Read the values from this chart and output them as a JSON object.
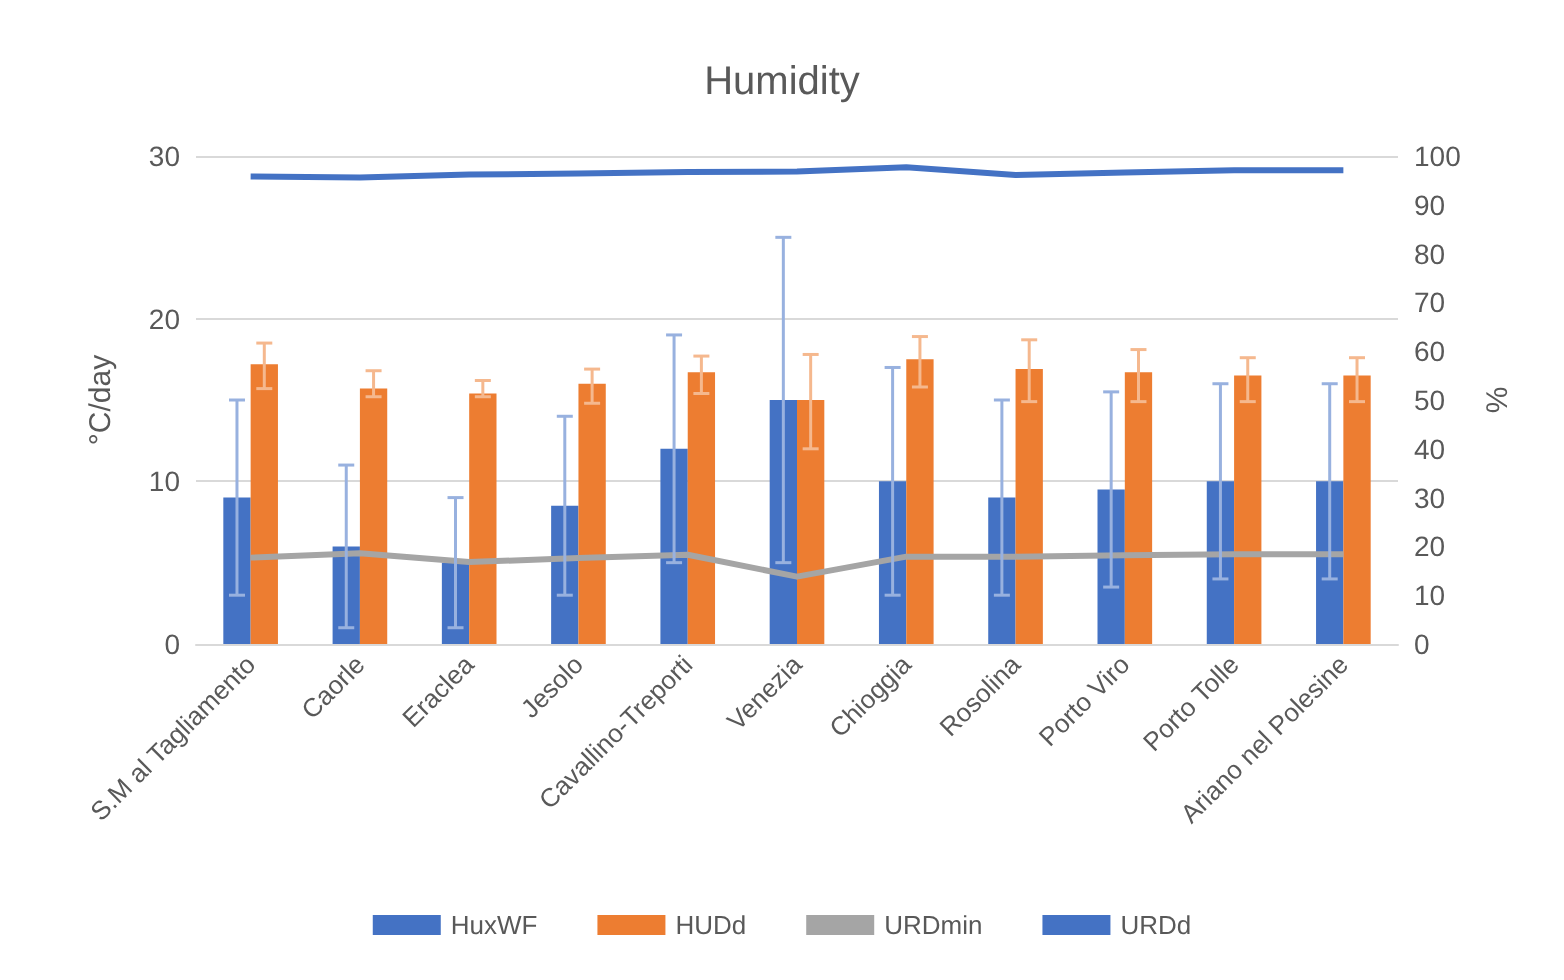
{
  "chart_data": {
    "type": "bar",
    "title": "Humidity",
    "ylabel": "°C/day",
    "y2label": "%",
    "categories": [
      "S.M al Tagliamento",
      "Caorle",
      "Eraclea",
      "Jesolo",
      "Cavallino-Treporti",
      "Venezia",
      "Chioggia",
      "Rosolina",
      "Porto Viro",
      "Porto Tolle",
      "Ariano nel Polesine"
    ],
    "series": [
      {
        "name": "HuxWF",
        "color": "#4472c4",
        "values": [
          9,
          6,
          5,
          8.5,
          12,
          15,
          10,
          9,
          9.5,
          10,
          10
        ],
        "errors": [
          [
            3,
            15
          ],
          [
            1,
            11
          ],
          [
            1,
            9
          ],
          [
            3,
            14
          ],
          [
            5,
            19
          ],
          [
            5,
            25
          ],
          [
            3,
            17
          ],
          [
            3,
            15
          ],
          [
            3.5,
            15.5
          ],
          [
            4,
            16
          ],
          [
            4,
            16
          ]
        ]
      },
      {
        "name": "HUDd",
        "color": "#ed7d31",
        "values": [
          17.2,
          15.7,
          15.4,
          16,
          16.7,
          15,
          17.5,
          16.9,
          16.7,
          16.5,
          16.5
        ],
        "errors": [
          [
            15.7,
            18.5
          ],
          [
            15.2,
            16.8
          ],
          [
            15.2,
            16.2
          ],
          [
            14.8,
            16.9
          ],
          [
            15.4,
            17.7
          ],
          [
            12,
            17.8
          ],
          [
            15.8,
            18.9
          ],
          [
            14.9,
            18.7
          ],
          [
            14.9,
            18.1
          ],
          [
            14.9,
            17.6
          ],
          [
            14.9,
            17.6
          ]
        ]
      },
      {
        "name": "URDmin",
        "type": "line",
        "axis": "y2",
        "color": "#a5a5a5",
        "values": [
          17.7,
          18.6,
          16.8,
          17.6,
          18.3,
          13.8,
          17.9,
          17.9,
          18.2,
          18.4,
          18.4
        ]
      },
      {
        "name": "URDd",
        "type": "line",
        "axis": "y2",
        "color": "#4472c4",
        "values": [
          95.8,
          95.6,
          96.2,
          96.4,
          96.7,
          96.8,
          97.7,
          96.1,
          96.6,
          97.1,
          97.1
        ]
      }
    ],
    "ylim": [
      0,
      30
    ],
    "yticks": [
      0,
      10,
      20,
      30
    ],
    "y2lim": [
      0,
      100
    ],
    "y2ticks": [
      0,
      10,
      20,
      30,
      40,
      50,
      60,
      70,
      80,
      90,
      100
    ],
    "grid": "y",
    "legend": "bottom",
    "marker": "none"
  }
}
